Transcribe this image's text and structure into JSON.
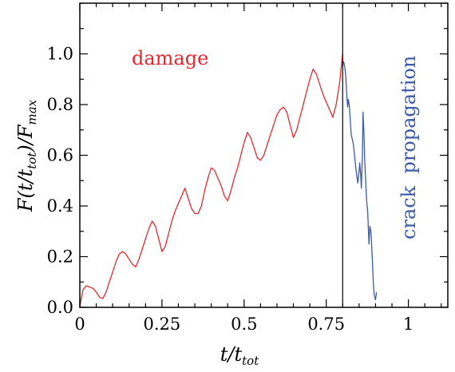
{
  "chart_data": {
    "type": "line",
    "title": "",
    "xlabel": {
      "base": "t/t",
      "sub": "tot"
    },
    "ylabel": {
      "lead": "F(t/t",
      "sub1": "tot",
      "mid": ")/F",
      "sub2": "max"
    },
    "xlim": [
      0,
      1.12
    ],
    "ylim": [
      0,
      1.2
    ],
    "xticks": [
      0,
      0.25,
      0.5,
      0.75,
      1
    ],
    "xtick_labels": [
      "0",
      "0.25",
      "0.5",
      "0.75",
      "1"
    ],
    "yticks": [
      0,
      0.2,
      0.4,
      0.6,
      0.8,
      1.0
    ],
    "ytick_labels": [
      "0.0",
      "0.2",
      "0.4",
      "0.6",
      "0.8",
      "1.0"
    ],
    "vline_x": 0.8,
    "grid": false,
    "annotations": [
      {
        "text": "damage",
        "color": "#e8262b"
      },
      {
        "text": "crack  propagation",
        "color": "#3a5ba8"
      }
    ],
    "series": [
      {
        "color": "#e8262b",
        "x": [
          0,
          0.005,
          0.01,
          0.02,
          0.03,
          0.04,
          0.05,
          0.06,
          0.07,
          0.08,
          0.09,
          0.1,
          0.11,
          0.12,
          0.13,
          0.14,
          0.15,
          0.16,
          0.17,
          0.18,
          0.19,
          0.2,
          0.21,
          0.22,
          0.23,
          0.24,
          0.25,
          0.26,
          0.27,
          0.28,
          0.29,
          0.3,
          0.31,
          0.32,
          0.33,
          0.34,
          0.35,
          0.36,
          0.37,
          0.38,
          0.39,
          0.4,
          0.41,
          0.42,
          0.43,
          0.44,
          0.45,
          0.46,
          0.47,
          0.48,
          0.49,
          0.5,
          0.51,
          0.52,
          0.53,
          0.54,
          0.55,
          0.56,
          0.57,
          0.58,
          0.59,
          0.6,
          0.61,
          0.62,
          0.63,
          0.64,
          0.65,
          0.66,
          0.67,
          0.68,
          0.69,
          0.7,
          0.71,
          0.72,
          0.73,
          0.74,
          0.75,
          0.76,
          0.77,
          0.78,
          0.79,
          0.8
        ],
        "y": [
          0,
          0.04,
          0.07,
          0.085,
          0.08,
          0.075,
          0.06,
          0.04,
          0.035,
          0.06,
          0.1,
          0.14,
          0.18,
          0.21,
          0.22,
          0.21,
          0.19,
          0.17,
          0.16,
          0.19,
          0.23,
          0.27,
          0.31,
          0.34,
          0.32,
          0.27,
          0.22,
          0.24,
          0.29,
          0.34,
          0.38,
          0.41,
          0.44,
          0.47,
          0.43,
          0.39,
          0.37,
          0.37,
          0.4,
          0.46,
          0.51,
          0.55,
          0.54,
          0.51,
          0.48,
          0.44,
          0.42,
          0.46,
          0.51,
          0.55,
          0.6,
          0.65,
          0.69,
          0.67,
          0.63,
          0.59,
          0.58,
          0.6,
          0.64,
          0.68,
          0.72,
          0.76,
          0.78,
          0.79,
          0.77,
          0.72,
          0.67,
          0.7,
          0.75,
          0.8,
          0.85,
          0.9,
          0.94,
          0.92,
          0.88,
          0.84,
          0.81,
          0.78,
          0.75,
          0.8,
          0.88,
          1.0
        ]
      },
      {
        "color": "#3a5ba8",
        "x": [
          0.8,
          0.802,
          0.805,
          0.808,
          0.81,
          0.812,
          0.815,
          0.817,
          0.82,
          0.823,
          0.826,
          0.83,
          0.833,
          0.836,
          0.84,
          0.843,
          0.846,
          0.85,
          0.852,
          0.855,
          0.857,
          0.86,
          0.862,
          0.865,
          0.867,
          0.87,
          0.873,
          0.876,
          0.88,
          0.883,
          0.886,
          0.89,
          0.893,
          0.896,
          0.9,
          0.903
        ],
        "y": [
          0.95,
          0.97,
          0.96,
          0.93,
          0.9,
          0.85,
          0.79,
          0.82,
          0.8,
          0.74,
          0.68,
          0.66,
          0.64,
          0.6,
          0.55,
          0.52,
          0.49,
          0.54,
          0.57,
          0.52,
          0.47,
          0.6,
          0.77,
          0.68,
          0.58,
          0.5,
          0.42,
          0.38,
          0.25,
          0.32,
          0.3,
          0.2,
          0.1,
          0.05,
          0.03,
          0.06
        ]
      }
    ]
  }
}
